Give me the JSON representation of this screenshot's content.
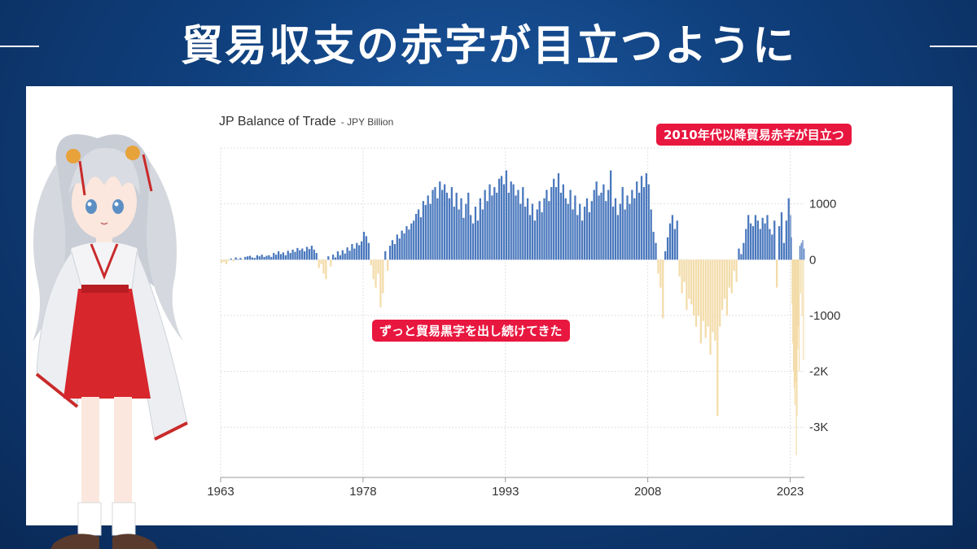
{
  "headline": "貿易収支の赤字が目立つように",
  "chart": {
    "title": "JP Balance of Trade",
    "subtitle": "- JPY Billion"
  },
  "annotations": {
    "recent_deficit": "2010年代以降貿易赤字が目立つ",
    "long_surplus": "ずっと貿易黒字を出し続けてきた"
  },
  "colors": {
    "positive": "#4a78bd",
    "negative": "#f3dcaa",
    "callout": "#e8173f",
    "background": "#0f3f7c"
  },
  "chart_data": {
    "type": "bar",
    "title": "JP Balance of Trade",
    "subtitle": "- JPY Billion",
    "x_ticks": [
      "1963",
      "1978",
      "1993",
      "2008",
      "2023"
    ],
    "y_ticks": [
      {
        "value": 1000,
        "label": "1000"
      },
      {
        "value": 0,
        "label": "0"
      },
      {
        "value": -1000,
        "label": "-1000"
      },
      {
        "value": -2000,
        "label": "-2K"
      },
      {
        "value": -3000,
        "label": "-3K"
      }
    ],
    "xlim": [
      1963,
      2024.5
    ],
    "ylim": [
      -3900,
      2000
    ],
    "grid": true,
    "y_axis_position": "right",
    "series": [
      {
        "values_by_period": [
          {
            "from": 1963,
            "to": 1968,
            "values": [
              -60,
              -40,
              -80,
              -20,
              20,
              -30,
              40,
              10,
              30,
              -10,
              50,
              60,
              70,
              40,
              30,
              80,
              60,
              90,
              50,
              70
            ]
          },
          {
            "from": 1968,
            "to": 1973,
            "values": [
              80,
              50,
              120,
              90,
              150,
              100,
              130,
              80,
              160,
              120,
              180,
              140,
              210,
              170,
              200,
              150,
              230,
              190,
              250,
              180
            ]
          },
          {
            "from": 1973,
            "to": 1978,
            "values": [
              120,
              -150,
              -80,
              -250,
              -350,
              60,
              -120,
              90,
              40,
              150,
              80,
              170,
              110,
              220,
              160,
              280,
              200,
              300,
              260,
              330
            ]
          },
          {
            "from": 1978,
            "to": 1983,
            "values": [
              500,
              420,
              300,
              -100,
              -350,
              -500,
              -250,
              -850,
              -600,
              150,
              -200,
              250,
              350,
              280,
              450,
              380,
              520,
              470,
              600,
              540
            ]
          },
          {
            "from": 1983,
            "to": 1988,
            "values": [
              650,
              700,
              820,
              900,
              760,
              1050,
              980,
              1150,
              1000,
              1250,
              1300,
              1100,
              1400,
              1250,
              1350,
              1200,
              1100,
              1300,
              950,
              1200
            ]
          },
          {
            "from": 1988,
            "to": 1993,
            "values": [
              900,
              1100,
              750,
              1000,
              1200,
              800,
              650,
              950,
              700,
              1100,
              900,
              1250,
              1050,
              1350,
              1150,
              1300,
              1200,
              1450,
              1500,
              1350
            ]
          },
          {
            "from": 1993,
            "to": 1998,
            "values": [
              1600,
              1200,
              1400,
              1350,
              1150,
              1250,
              1000,
              1300,
              950,
              1100,
              800,
              1000,
              700,
              900,
              1050,
              850,
              1100,
              1250,
              1050,
              1300
            ]
          },
          {
            "from": 1998,
            "to": 2003,
            "values": [
              1450,
              1300,
              1550,
              1200,
              1350,
              1100,
              1000,
              1250,
              900,
              1150,
              800,
              1000,
              700,
              950,
              1100,
              850,
              1050,
              1250,
              1400,
              1150
            ]
          },
          {
            "from": 2003,
            "to": 2008,
            "values": [
              1200,
              1350,
              1050,
              1250,
              1600,
              950,
              1100,
              800,
              1000,
              1300,
              900,
              1150,
              1000,
              1250,
              1100,
              1400,
              1200,
              1500,
              1300,
              1550
            ]
          },
          {
            "from": 2008,
            "to": 2013,
            "values": [
              1350,
              900,
              500,
              300,
              -250,
              -500,
              -1050,
              150,
              400,
              650,
              800,
              550,
              700,
              -300,
              -600,
              -400,
              -900,
              -700,
              -800,
              -1000
            ]
          },
          {
            "from": 2013,
            "to": 2018,
            "values": [
              -1200,
              -1000,
              -1500,
              -1100,
              -1400,
              -1200,
              -1700,
              -1300,
              -1450,
              -2800,
              -1200,
              -900,
              -700,
              -1000,
              -500,
              -600,
              -200,
              -400,
              200,
              100
            ]
          },
          {
            "from": 2018,
            "to": 2023,
            "values": [
              300,
              550,
              800,
              650,
              600,
              800,
              700,
              550,
              750,
              650,
              800,
              550,
              450,
              700,
              -500,
              600,
              850,
              300,
              700,
              1100
            ]
          },
          {
            "from": 2023,
            "to": 2024.5,
            "values": [
              800,
              400,
              -800,
              -1500,
              -2000,
              -2300,
              -2600,
              -2200,
              -3500,
              -2800,
              -1600,
              -1200,
              -2000,
              250,
              -600,
              300,
              -1000,
              350,
              -1800,
              200
            ]
          }
        ]
      }
    ]
  }
}
